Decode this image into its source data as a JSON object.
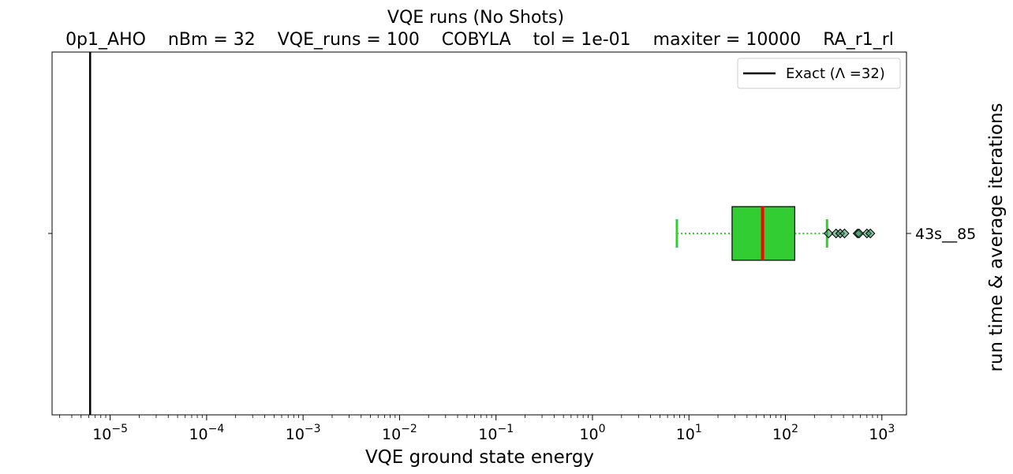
{
  "chart_data": {
    "type": "box",
    "title": "VQE runs (No Shots)",
    "subtitle": "0p1_AHO    nBm = 32    VQE_runs = 100    COBYLA    tol = 1e-01    maxiter = 10000    RA_r1_rl",
    "xlabel": "VQE ground state energy",
    "ylabel": "run time & average iterations",
    "xscale": "log",
    "xlim": [
      2.5e-06,
      1800
    ],
    "x_tick_exponents": [
      -5,
      -4,
      -3,
      -2,
      -1,
      0,
      1,
      2,
      3
    ],
    "categories": [
      "43s__85"
    ],
    "box": {
      "whisker_low": 7.5,
      "q1": 28,
      "median": 58,
      "q3": 125,
      "whisker_high": 270,
      "fliers": [
        280,
        335,
        370,
        410,
        560,
        580,
        700,
        760
      ]
    },
    "exact_line": {
      "label": "Exact (Λ =32)",
      "value": 6.2e-06,
      "color": "#000000"
    },
    "legend": {
      "placement": "top-right"
    },
    "colors": {
      "box_fill": "#32cd32",
      "whisker": "#32cd32",
      "median": "#ff0000",
      "flier_fill": "#2e8b57"
    },
    "grid": false
  }
}
